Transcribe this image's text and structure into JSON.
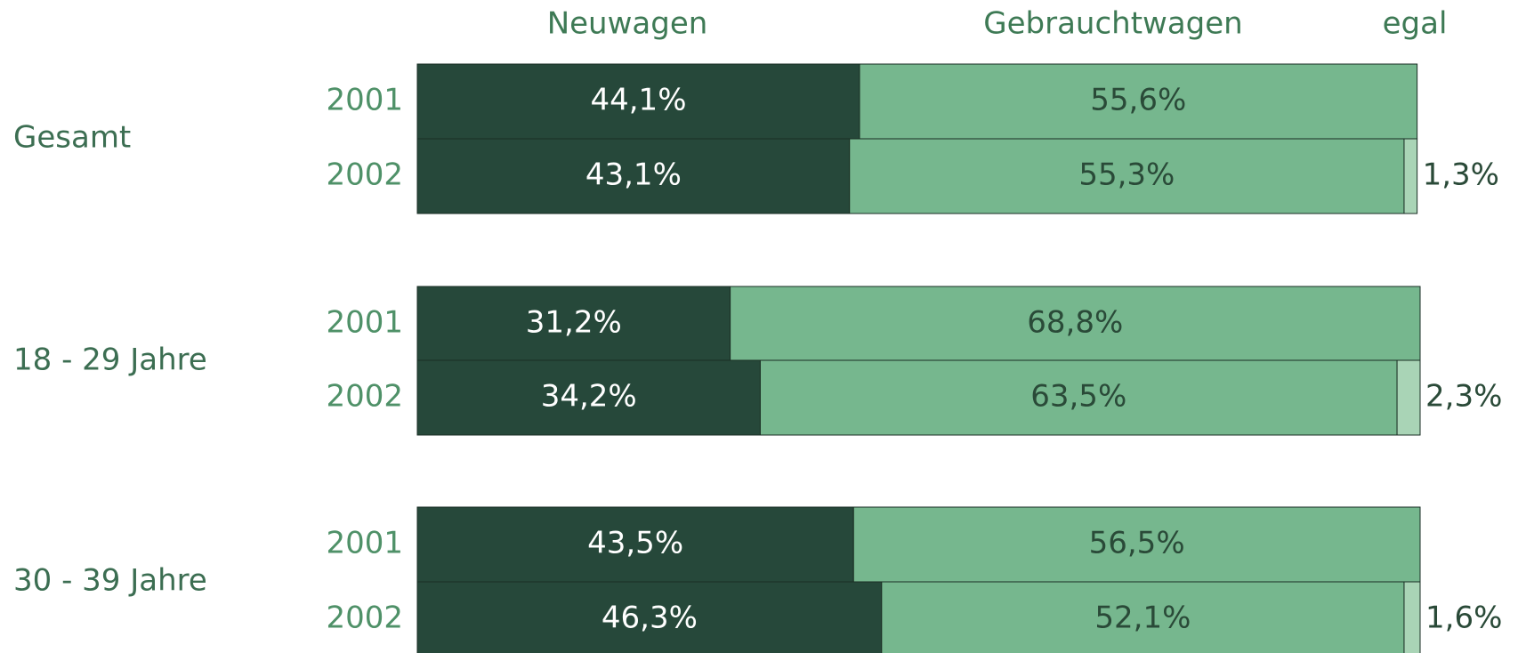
{
  "chart_data": {
    "type": "stacked-barh",
    "groups": [
      "Gesamt",
      "18 - 29 Jahre",
      "30 - 39 Jahre"
    ],
    "categories": [
      "2001",
      "2002",
      "2001",
      "2002",
      "2001",
      "2002"
    ],
    "xlim": [
      0,
      100
    ],
    "series": [
      {
        "name": "Neuwagen",
        "color": "#26483a",
        "label_color": "#ffffff",
        "values": [
          44.1,
          43.1,
          31.2,
          34.2,
          43.5,
          46.3
        ],
        "value_labels": [
          "44,1%",
          "43,1%",
          "31,2%",
          "34,2%",
          "43,5%",
          "46,3%"
        ]
      },
      {
        "name": "Gebrauchtwagen",
        "color": "#76b78e",
        "label_color": "#2a4a38",
        "values": [
          55.6,
          55.3,
          68.8,
          63.5,
          56.5,
          52.1
        ],
        "value_labels": [
          "55,6%",
          "55,3%",
          "68,8%",
          "63,5%",
          "56,5%",
          "52,1%"
        ]
      },
      {
        "name": "egal",
        "color": "#a9d4b6",
        "label_color": "#2a4a38",
        "values": [
          null,
          1.3,
          null,
          2.3,
          null,
          1.6
        ],
        "value_labels": [
          null,
          "1,3%",
          null,
          "2,3%",
          null,
          "1,6%"
        ]
      }
    ]
  }
}
